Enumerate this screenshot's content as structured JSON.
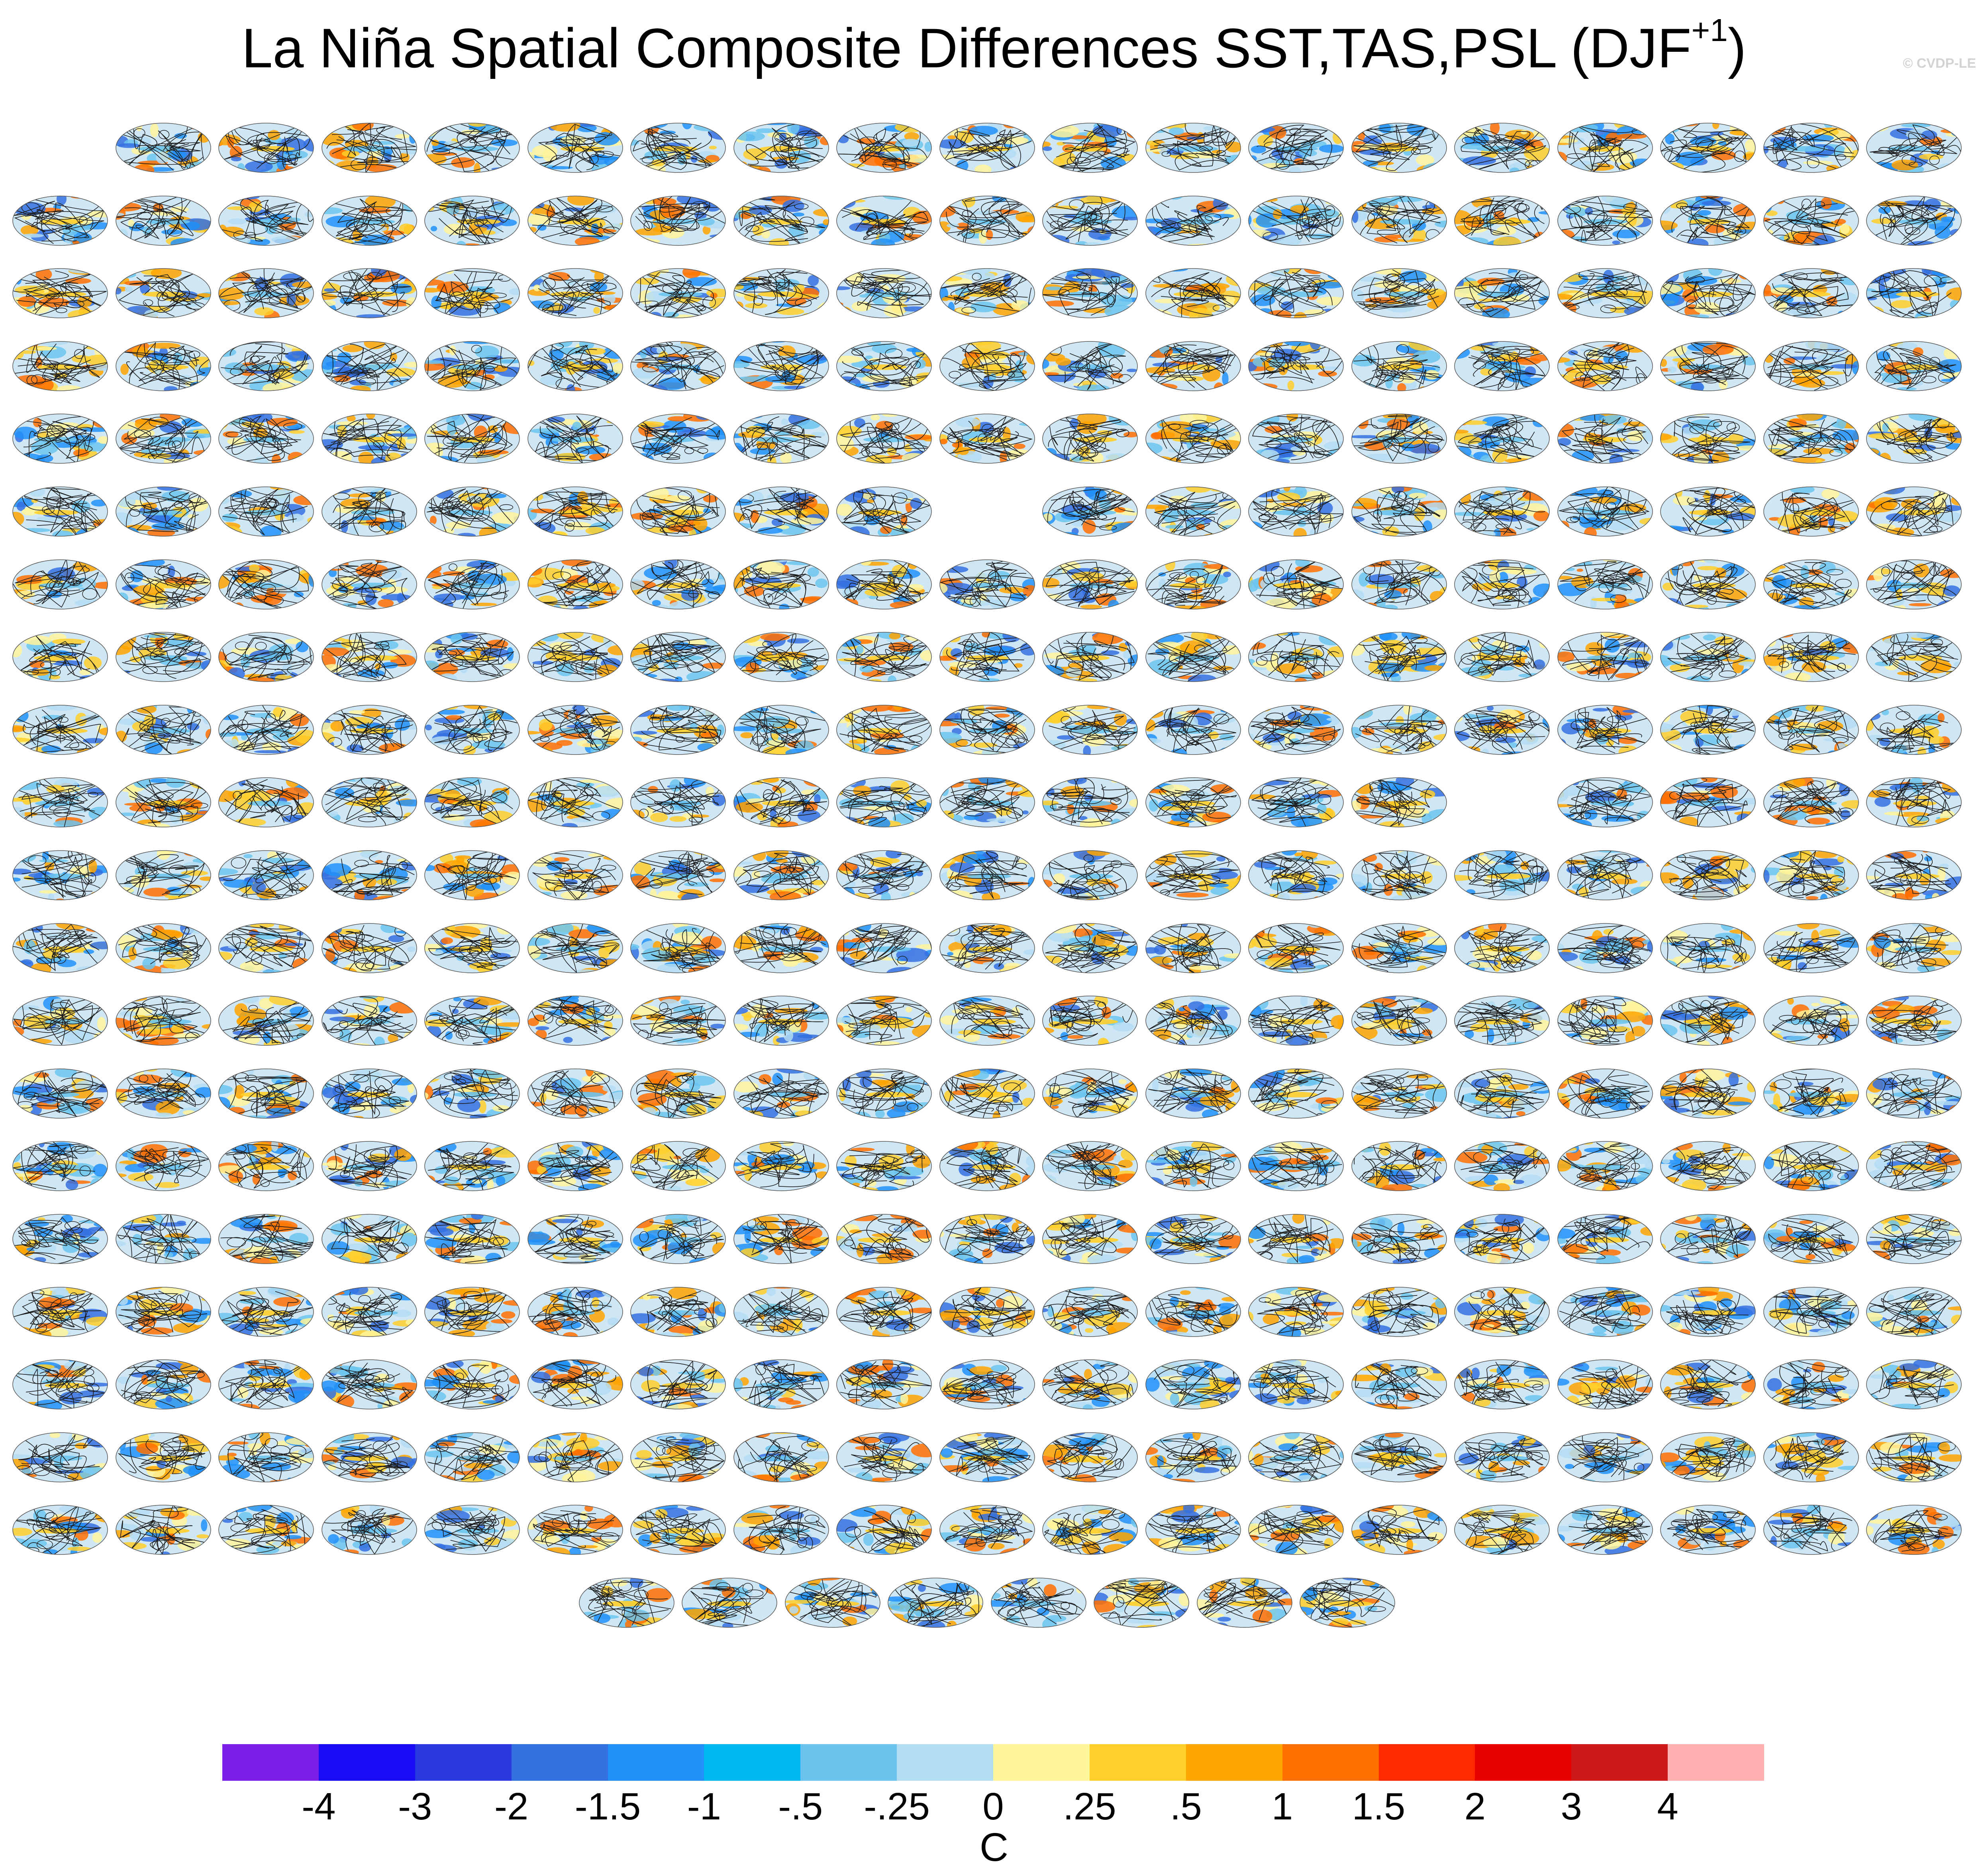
{
  "title": {
    "text": "La Niña Spatial Composite Differences SST,TAS,PSL (DJF",
    "superscript": "+1",
    "closing": ")"
  },
  "watermark": "© CVDP-LE",
  "panel_grid": {
    "rows": [
      {
        "start_col": 1,
        "count": 18
      },
      {
        "start_col": 0,
        "count": 19
      },
      {
        "start_col": 0,
        "count": 19
      },
      {
        "start_col": 0,
        "count": 19
      },
      {
        "start_col": 0,
        "count": 19
      },
      {
        "start_col": 0,
        "count": 9,
        "second_start_col": 10,
        "second_count": 9
      },
      {
        "start_col": 0,
        "count": 19
      },
      {
        "start_col": 0,
        "count": 19
      },
      {
        "start_col": 0,
        "count": 19
      },
      {
        "start_col": 0,
        "count": 14,
        "second_start_col": 15,
        "second_count": 4
      },
      {
        "start_col": 0,
        "count": 19
      },
      {
        "start_col": 0,
        "count": 19
      },
      {
        "start_col": 0,
        "count": 19
      },
      {
        "start_col": 0,
        "count": 19
      },
      {
        "start_col": 0,
        "count": 19
      },
      {
        "start_col": 0,
        "count": 19
      },
      {
        "start_col": 0,
        "count": 19
      },
      {
        "start_col": 0,
        "count": 19
      },
      {
        "start_col": 0,
        "count": 19
      },
      {
        "start_col": 0,
        "count": 19
      },
      {
        "start_col": 5.5,
        "count": 8
      }
    ]
  },
  "colorbar": {
    "colors": [
      "#7b1fe8",
      "#1a0cf5",
      "#2b3ae0",
      "#3470e0",
      "#2190f8",
      "#00b8f0",
      "#6cc4ee",
      "#b4dcf2",
      "#fff59a",
      "#ffcf2a",
      "#ffa500",
      "#ff7000",
      "#ff2a00",
      "#e80000",
      "#cc1a1a",
      "#ffb0b0"
    ],
    "tick_labels": [
      "-4",
      "-3",
      "-2",
      "-1.5",
      "-1",
      "-.5",
      "-.25",
      "0",
      ".25",
      ".5",
      "1",
      "1.5",
      "2",
      "3",
      "4"
    ],
    "unit": "C"
  },
  "colors": {
    "warm": [
      "#fff59a",
      "#ffcf2a",
      "#ffa500",
      "#ff7000"
    ],
    "cool": [
      "#b4dcf2",
      "#6cc4ee",
      "#2190f8",
      "#3470e0"
    ],
    "contour": "#1a1a1a",
    "land_bg": "#dfe9f2"
  }
}
